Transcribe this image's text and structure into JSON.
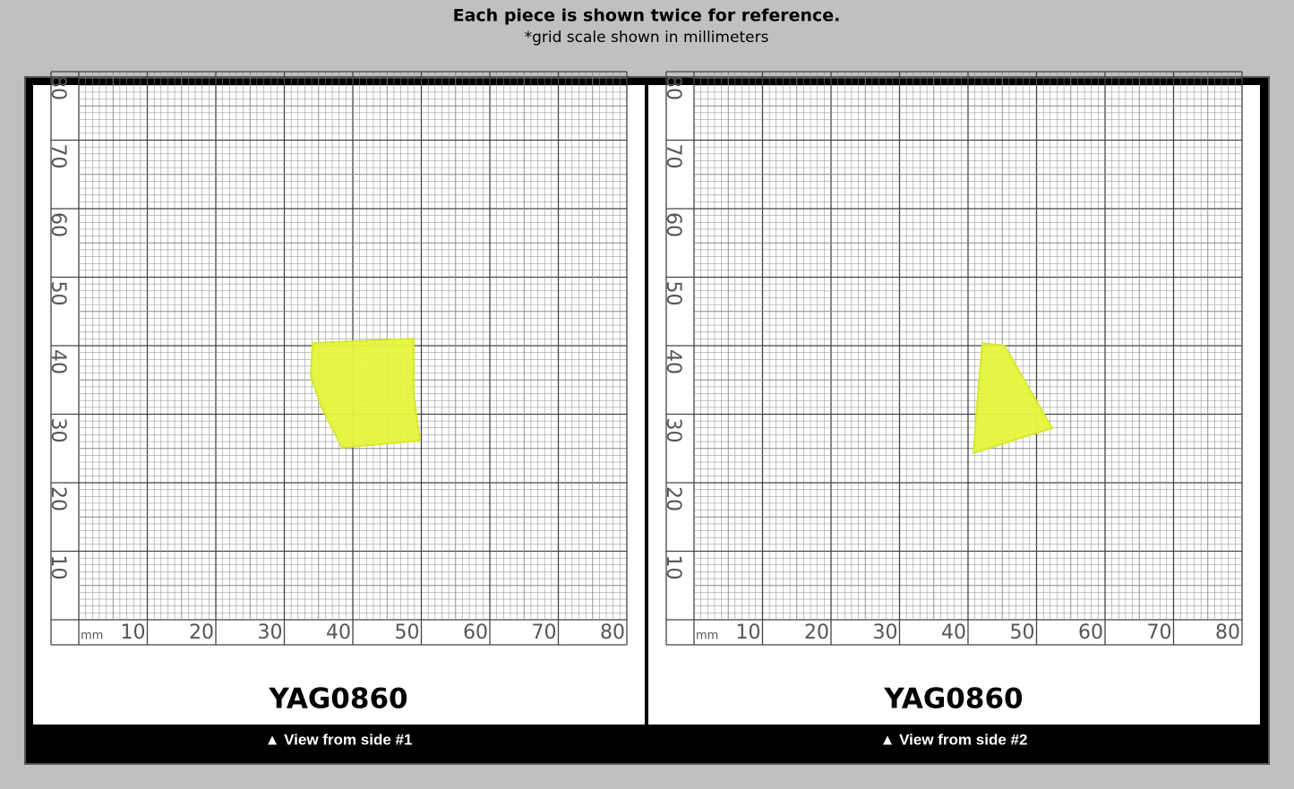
{
  "header": {
    "title": "Each piece is shown twice for reference.",
    "subtitle": "*grid scale shown in millimeters"
  },
  "panels": [
    {
      "scale": {
        "unit": "mm",
        "x_labels": [
          "10",
          "20",
          "30",
          "40",
          "50",
          "60",
          "70",
          "80"
        ],
        "y_labels": [
          "10",
          "20",
          "30",
          "40",
          "50",
          "60",
          "70",
          "80"
        ]
      },
      "label": "YAG0860",
      "caption": "▲ View from side #1"
    },
    {
      "scale": {
        "unit": "mm",
        "x_labels": [
          "10",
          "20",
          "30",
          "40",
          "50",
          "60",
          "70",
          "80"
        ],
        "y_labels": [
          "10",
          "20",
          "30",
          "40",
          "50",
          "60",
          "70",
          "80"
        ]
      },
      "label": "YAG0860",
      "caption": "▲ View from side #2"
    }
  ]
}
